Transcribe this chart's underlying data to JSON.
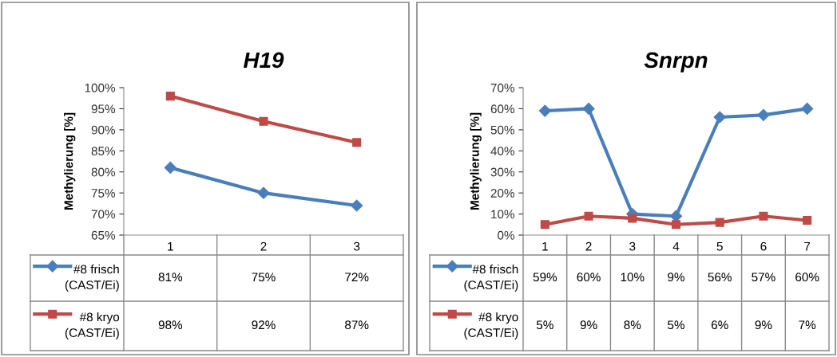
{
  "chart_data": [
    {
      "type": "line",
      "title": "H19",
      "ylabel": "Methylierung [%]",
      "categories": [
        "1",
        "2",
        "3"
      ],
      "ylim": [
        65,
        100
      ],
      "yticks": [
        {
          "value": 65,
          "label": "65%"
        },
        {
          "value": 70,
          "label": "70%"
        },
        {
          "value": 75,
          "label": "75%"
        },
        {
          "value": 80,
          "label": "80%"
        },
        {
          "value": 85,
          "label": "85%"
        },
        {
          "value": 90,
          "label": "90%"
        },
        {
          "value": 95,
          "label": "95%"
        },
        {
          "value": 100,
          "label": "100%"
        }
      ],
      "legend": "bottom",
      "series": [
        {
          "name": "#8 frisch (CAST/Ei)",
          "color": "#4a7ebb",
          "marker": "diamond",
          "values": [
            81,
            75,
            72
          ],
          "value_labels": [
            "81%",
            "75%",
            "72%"
          ]
        },
        {
          "name": "#8 kryo (CAST/Ei)",
          "color": "#be4b48",
          "marker": "square",
          "values": [
            98,
            92,
            87
          ],
          "value_labels": [
            "98%",
            "92%",
            "87%"
          ]
        }
      ]
    },
    {
      "type": "line",
      "title": "Snrpn",
      "ylabel": "Methylierung [%]",
      "categories": [
        "1",
        "2",
        "3",
        "4",
        "5",
        "6",
        "7"
      ],
      "ylim": [
        0,
        70
      ],
      "yticks": [
        {
          "value": 0,
          "label": "0%"
        },
        {
          "value": 10,
          "label": "10%"
        },
        {
          "value": 20,
          "label": "20%"
        },
        {
          "value": 30,
          "label": "30%"
        },
        {
          "value": 40,
          "label": "40%"
        },
        {
          "value": 50,
          "label": "50%"
        },
        {
          "value": 60,
          "label": "60%"
        },
        {
          "value": 70,
          "label": "70%"
        }
      ],
      "legend": "bottom",
      "series": [
        {
          "name": "#8 frisch (CAST/Ei)",
          "color": "#4a7ebb",
          "marker": "diamond",
          "values": [
            59,
            60,
            10,
            9,
            56,
            57,
            60
          ],
          "value_labels": [
            "59%",
            "60%",
            "10%",
            "9%",
            "56%",
            "57%",
            "60%"
          ]
        },
        {
          "name": "#8 kryo (CAST/Ei)",
          "color": "#be4b48",
          "marker": "square",
          "values": [
            5,
            9,
            8,
            5,
            6,
            9,
            7
          ],
          "value_labels": [
            "5%",
            "9%",
            "8%",
            "5%",
            "6%",
            "9%",
            "7%"
          ]
        }
      ]
    }
  ]
}
